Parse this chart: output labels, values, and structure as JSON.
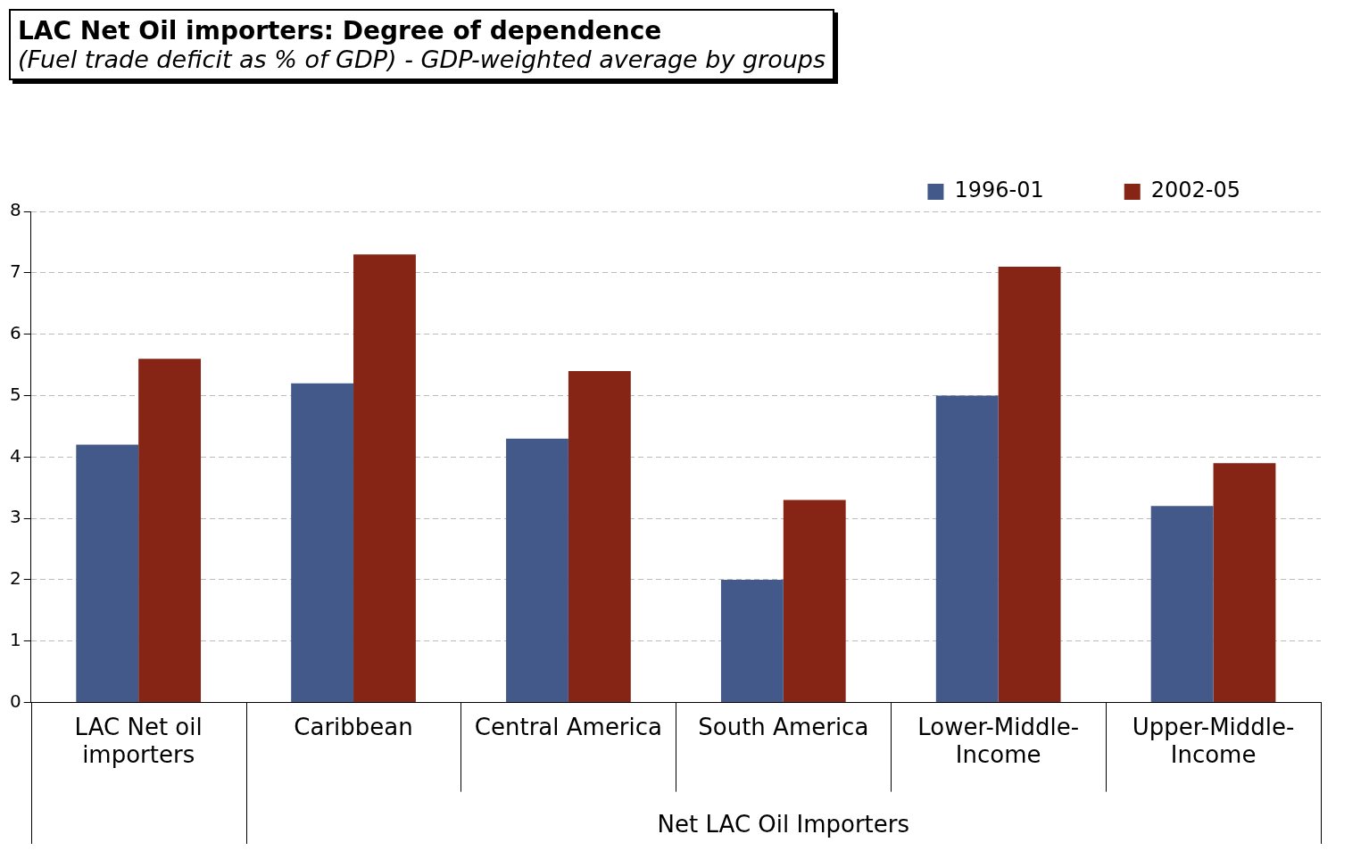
{
  "chart_data": {
    "type": "bar",
    "title": "LAC Net Oil importers: Degree of dependence",
    "subtitle": "(Fuel trade deficit as % of GDP) - GDP-weighted average by groups",
    "categories": [
      "LAC Net oil importers",
      "Caribbean",
      "Central America",
      "South America",
      "Lower-Middle-Income",
      "Upper-Middle-Income"
    ],
    "series": [
      {
        "name": "1996-01",
        "color": "#43598a",
        "values": [
          4.2,
          5.2,
          4.3,
          2.0,
          5.0,
          3.2
        ]
      },
      {
        "name": "2002-05",
        "color": "#862415",
        "values": [
          5.6,
          7.3,
          5.4,
          3.3,
          7.1,
          3.9
        ]
      }
    ],
    "ylim": [
      0,
      8
    ],
    "yticks": [
      0,
      1,
      2,
      3,
      4,
      5,
      6,
      7,
      8
    ],
    "grid": "y",
    "legend": "top right",
    "annotations": [
      "Net LAC Oil Importers"
    ]
  }
}
